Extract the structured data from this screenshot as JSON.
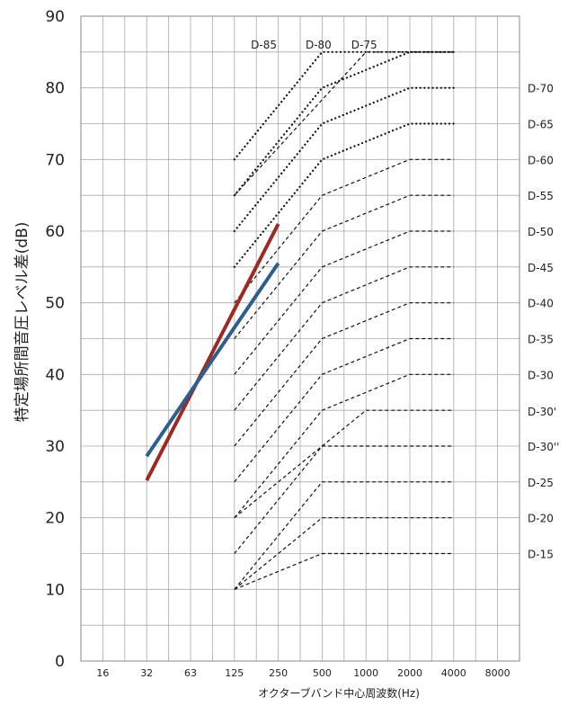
{
  "chart_data": {
    "type": "line",
    "title": "",
    "xlabel": "オクターブバンド中心周波数(Hz)",
    "ylabel": "特定場所間音圧レベル差(dB)",
    "categories": [
      "16",
      "32",
      "63",
      "125",
      "250",
      "500",
      "1000",
      "2000",
      "4000",
      "8000"
    ],
    "ylim": [
      0,
      90
    ],
    "yticks": [
      0,
      10,
      20,
      30,
      40,
      50,
      60,
      70,
      80,
      90
    ],
    "grid": true,
    "reference_curves": [
      {
        "label": "D-15",
        "style": "dashed",
        "points": [
          [
            "125",
            10
          ],
          [
            "500",
            15
          ],
          [
            "4000",
            15
          ]
        ]
      },
      {
        "label": "D-20",
        "style": "dashed",
        "points": [
          [
            "125",
            10
          ],
          [
            "500",
            20
          ],
          [
            "4000",
            20
          ]
        ]
      },
      {
        "label": "D-25",
        "style": "dashed",
        "points": [
          [
            "125",
            10
          ],
          [
            "500",
            25
          ],
          [
            "4000",
            25
          ]
        ]
      },
      {
        "label": "D-30''",
        "style": "dashed",
        "points": [
          [
            "125",
            15
          ],
          [
            "500",
            30
          ],
          [
            "4000",
            30
          ]
        ]
      },
      {
        "label": "D-30'",
        "style": "dashed",
        "points": [
          [
            "125",
            20
          ],
          [
            "1000",
            35
          ],
          [
            "4000",
            35
          ]
        ]
      },
      {
        "label": "D-30",
        "style": "dashed",
        "points": [
          [
            "125",
            20
          ],
          [
            "500",
            35
          ],
          [
            "2000",
            40
          ],
          [
            "4000",
            40
          ]
        ]
      },
      {
        "label": "D-35",
        "style": "dashed",
        "points": [
          [
            "125",
            25
          ],
          [
            "500",
            40
          ],
          [
            "2000",
            45
          ],
          [
            "4000",
            45
          ]
        ]
      },
      {
        "label": "D-40",
        "style": "dashed",
        "points": [
          [
            "125",
            30
          ],
          [
            "500",
            45
          ],
          [
            "2000",
            50
          ],
          [
            "4000",
            50
          ]
        ]
      },
      {
        "label": "D-45",
        "style": "dashed",
        "points": [
          [
            "125",
            35
          ],
          [
            "500",
            50
          ],
          [
            "2000",
            55
          ],
          [
            "4000",
            55
          ]
        ]
      },
      {
        "label": "D-50",
        "style": "dashed",
        "points": [
          [
            "125",
            40
          ],
          [
            "500",
            55
          ],
          [
            "2000",
            60
          ],
          [
            "4000",
            60
          ]
        ]
      },
      {
        "label": "D-55",
        "style": "dashed",
        "points": [
          [
            "125",
            45
          ],
          [
            "500",
            60
          ],
          [
            "2000",
            65
          ],
          [
            "4000",
            65
          ]
        ]
      },
      {
        "label": "D-60",
        "style": "dashed",
        "points": [
          [
            "125",
            50
          ],
          [
            "500",
            65
          ],
          [
            "2000",
            70
          ],
          [
            "4000",
            70
          ]
        ]
      },
      {
        "label": "D-65",
        "style": "dotted",
        "points": [
          [
            "125",
            55
          ],
          [
            "500",
            70
          ],
          [
            "2000",
            75
          ],
          [
            "4000",
            75
          ]
        ]
      },
      {
        "label": "D-70",
        "style": "dotted",
        "points": [
          [
            "125",
            60
          ],
          [
            "500",
            75
          ],
          [
            "2000",
            80
          ],
          [
            "4000",
            80
          ]
        ]
      },
      {
        "label": "D-75",
        "style": "dotted",
        "points": [
          [
            "125",
            65
          ],
          [
            "500",
            80
          ],
          [
            "2000",
            85
          ],
          [
            "4000",
            85
          ]
        ]
      },
      {
        "label": "D-80",
        "style": "dashed",
        "points": [
          [
            "125",
            65
          ],
          [
            "1000",
            85
          ],
          [
            "4000",
            85
          ]
        ]
      },
      {
        "label": "D-85",
        "style": "dotted",
        "points": [
          [
            "125",
            70
          ],
          [
            "500",
            85
          ],
          [
            "4000",
            85
          ]
        ]
      }
    ],
    "series": [
      {
        "color": "#9b2a22",
        "points": [
          [
            "32",
            25.2
          ],
          [
            "250",
            61.0
          ]
        ]
      },
      {
        "color": "#2f5d8e",
        "points": [
          [
            "32",
            28.6
          ],
          [
            "250",
            55.5
          ]
        ]
      }
    ]
  }
}
